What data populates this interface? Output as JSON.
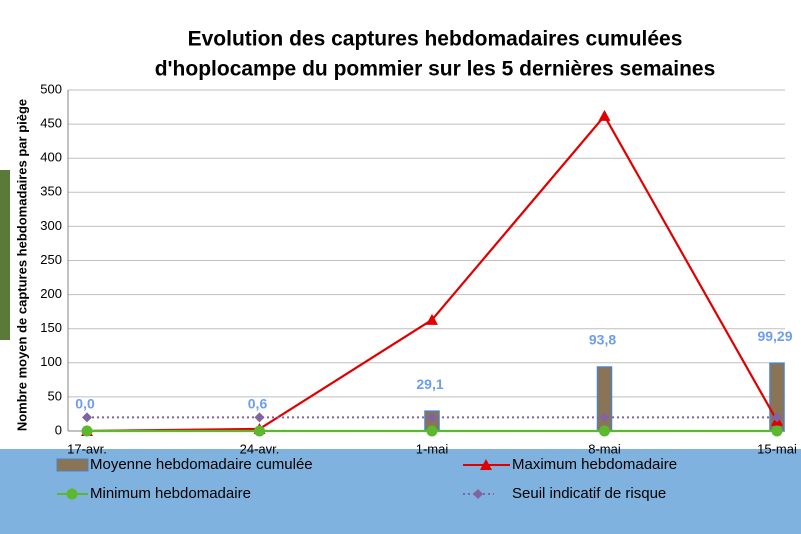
{
  "chart_data": {
    "type": "combo",
    "title": [
      "Evolution des captures hebdomadaires cumulées",
      "d'hoplocampe du pommier sur les 5 dernières semaines"
    ],
    "y_label": "Nombre moyen de captures hebdomadaires par piège",
    "categories": [
      "17-avr.",
      "24-avr.",
      "1-mai",
      "8-mai",
      "15-mai"
    ],
    "ylim": [
      0,
      500
    ],
    "yticks": [
      0,
      50,
      100,
      150,
      200,
      250,
      300,
      350,
      400,
      450,
      500
    ],
    "grid": true,
    "series": [
      {
        "name": "Moyenne hebdomadaire cumulée",
        "type": "bar",
        "color": "#8b7355",
        "values": [
          0,
          0.6,
          29.1,
          93.8,
          99.29
        ],
        "value_labels": [
          "0,0",
          "0,6",
          "29,1",
          "93,8",
          "99,29"
        ],
        "label_color": "#6d9eeb"
      },
      {
        "name": "Maximum hebdomadaire",
        "type": "line",
        "marker": "triangle",
        "color": "#e00000",
        "values": [
          0,
          3,
          163,
          462,
          15
        ]
      },
      {
        "name": "Minimum hebdomadaire",
        "type": "line",
        "marker": "circle",
        "color": "#5cb82e",
        "values": [
          0,
          0,
          0,
          0,
          0
        ]
      },
      {
        "name": "Seuil indicatif de risque",
        "type": "line",
        "marker": "diamond",
        "dashed": true,
        "color": "#8064a2",
        "values": [
          20,
          20,
          20,
          20,
          20
        ]
      }
    ],
    "legend": "bottom"
  }
}
